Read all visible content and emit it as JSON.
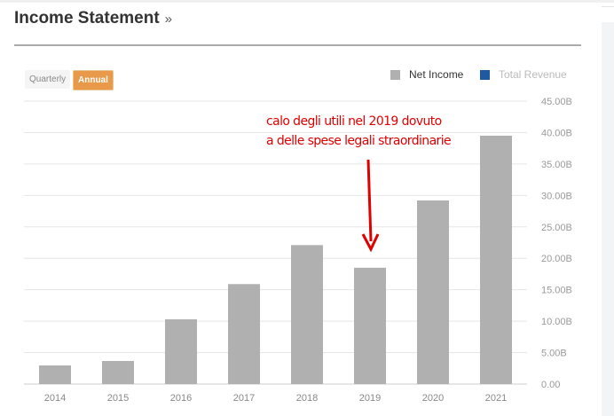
{
  "header": {
    "title": "Income Statement",
    "chevron": "»"
  },
  "toggles": {
    "quarterly": "Quarterly",
    "annual": "Annual"
  },
  "legend": [
    {
      "label": "Net Income",
      "color": "#b0b0b0"
    },
    {
      "label": "Total Revenue",
      "color": "#1f5aa0"
    }
  ],
  "annotation": [
    "calo degli utili nel 2019 dovuto",
    "a delle spese legali straordinarie"
  ],
  "chart_data": {
    "type": "bar",
    "title": "Income Statement",
    "categories": [
      "2014",
      "2015",
      "2016",
      "2017",
      "2018",
      "2019",
      "2020",
      "2021"
    ],
    "series": [
      {
        "name": "Net Income",
        "values": [
          2.96,
          3.67,
          10.3,
          15.9,
          22.1,
          18.5,
          29.2,
          39.5
        ]
      }
    ],
    "yunit": "B",
    "ylim": [
      0,
      45
    ],
    "yticks": [
      "0.00",
      "5.00B",
      "10.00B",
      "15.00B",
      "20.00B",
      "25.00B",
      "30.00B",
      "35.00B",
      "40.00B",
      "45.00B"
    ],
    "grid": true,
    "legend_position": "top-right",
    "annotation_target": "2019"
  }
}
